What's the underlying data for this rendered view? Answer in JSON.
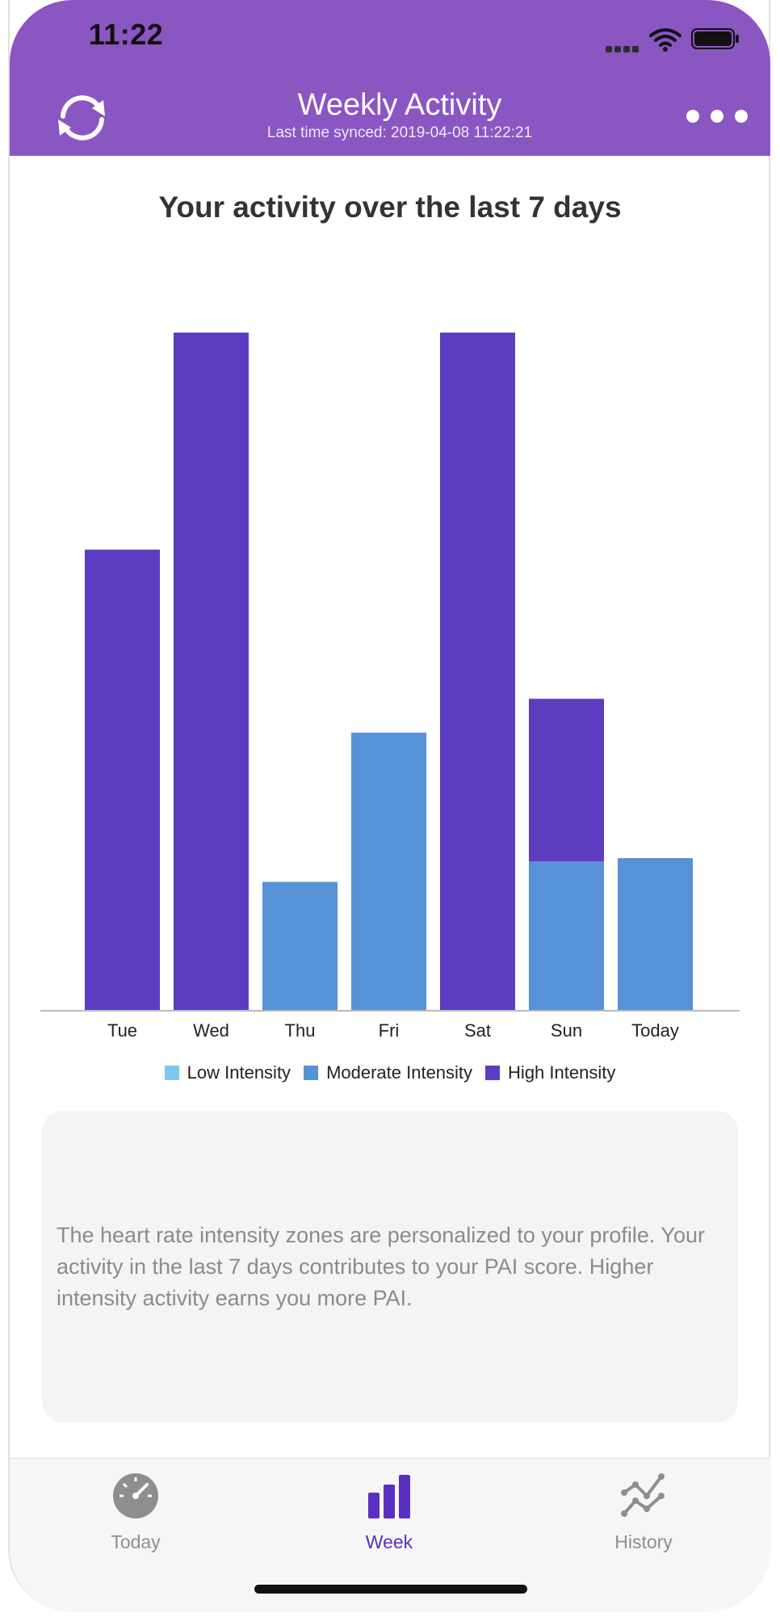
{
  "status_bar": {
    "time": "11:22"
  },
  "header": {
    "title": "Weekly Activity",
    "subtitle": "Last time synced: 2019-04-08 11:22:21",
    "sync_icon": "refresh-icon",
    "more_icon": "more-dots-icon",
    "background_color": "#8a56c2"
  },
  "chart_title": "Your activity over the last 7 days",
  "chart_data": {
    "type": "bar",
    "stacked": true,
    "categories": [
      "Tue",
      "Wed",
      "Thu",
      "Fri",
      "Sat",
      "Sun",
      "Today"
    ],
    "series": [
      {
        "name": "Low Intensity",
        "color": "#7cc8ef",
        "values": [
          0,
          0,
          0,
          0,
          0,
          0,
          0
        ]
      },
      {
        "name": "Moderate Intensity",
        "color": "#5791d6",
        "values": [
          0,
          0,
          19,
          41,
          0,
          22,
          22.5
        ]
      },
      {
        "name": "High Intensity",
        "color": "#5c3dc0",
        "values": [
          68,
          100,
          0,
          0,
          100,
          24,
          0
        ]
      }
    ],
    "ylim": [
      0,
      100
    ],
    "grid": false,
    "legend_position": "bottom"
  },
  "info_text": "The heart rate intensity zones are personalized to your profile. Your activity in the last 7 days contributes to your PAI score. Higher intensity activity earns you more PAI.",
  "tabs": [
    {
      "label": "Today",
      "icon": "speedometer-icon",
      "active": false
    },
    {
      "label": "Week",
      "icon": "bar-chart-icon",
      "active": true
    },
    {
      "label": "History",
      "icon": "line-graph-icon",
      "active": false
    }
  ],
  "colors": {
    "tab_active": "#5b2fc0",
    "tab_inactive": "#8e8e8e",
    "title_text": "#333333"
  }
}
